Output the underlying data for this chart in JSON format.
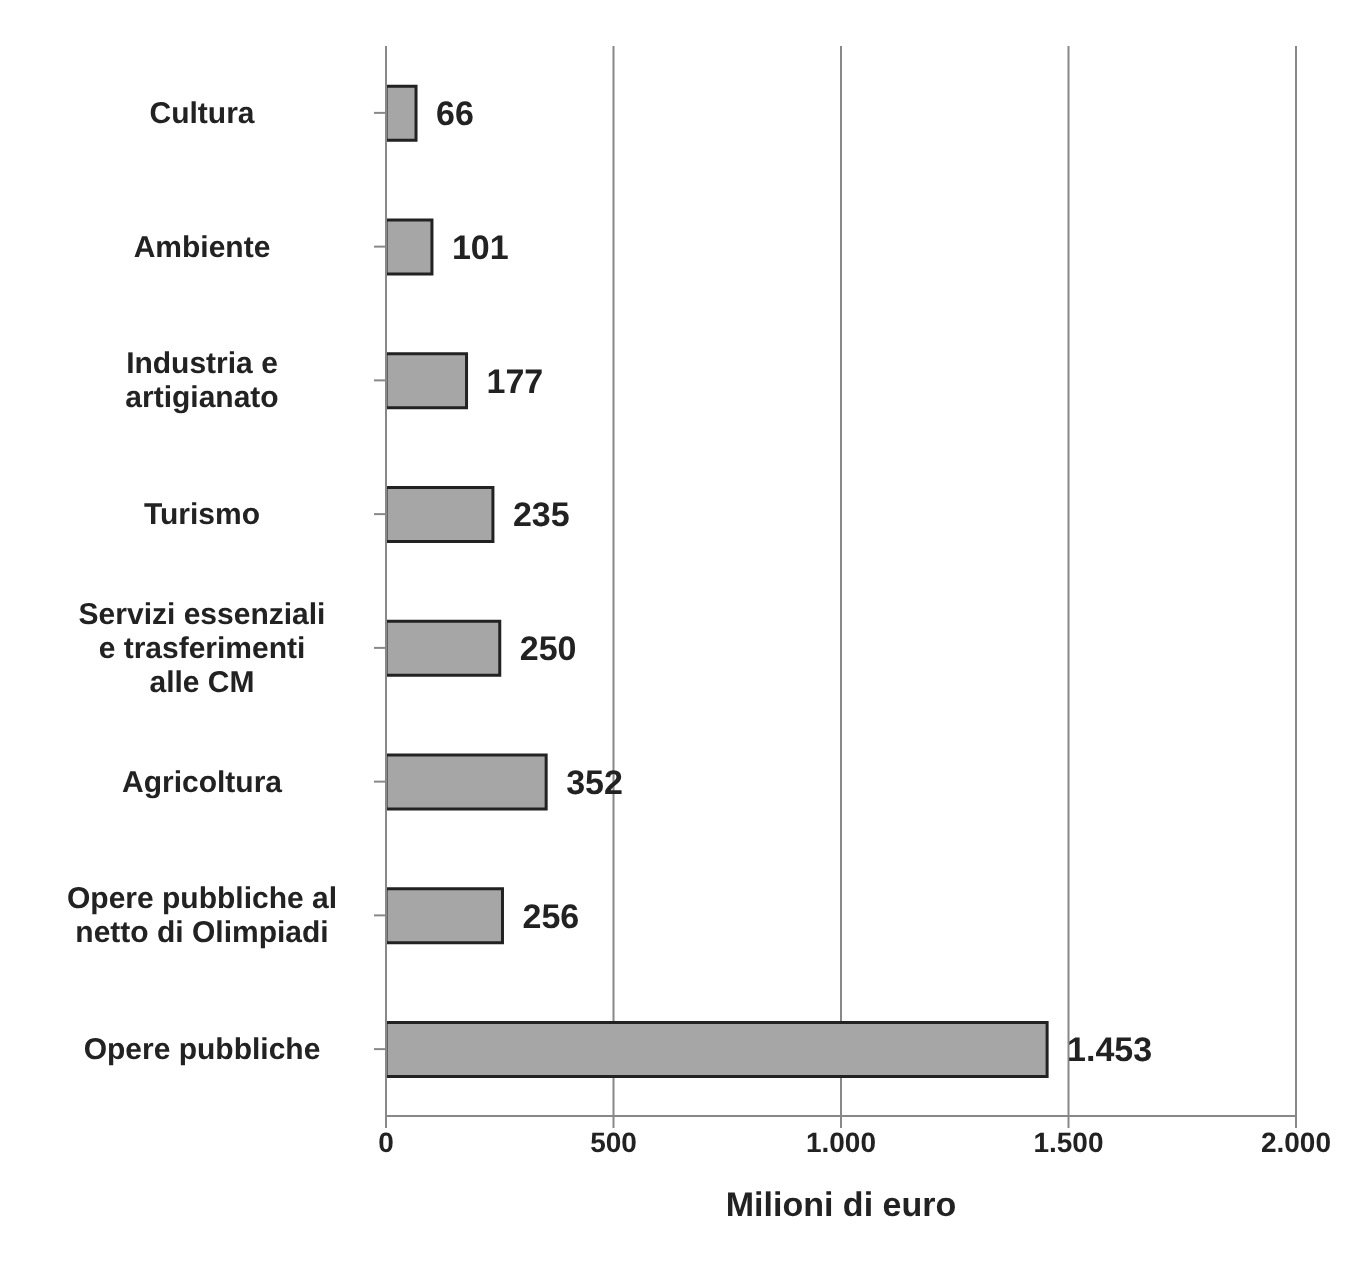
{
  "chart_data": {
    "type": "bar",
    "orientation": "horizontal",
    "xlabel": "Milioni di euro",
    "categories": [
      "Cultura",
      "Ambiente",
      "Industria e artigianato",
      "Turismo",
      "Servizi essenziali e trasferimenti alle CM",
      "Agricoltura",
      "Opere pubbliche al netto di Olimpiadi",
      "Opere pubbliche"
    ],
    "values": [
      66,
      101,
      177,
      235,
      250,
      352,
      256,
      1453
    ],
    "value_labels": [
      "66",
      "101",
      "177",
      "235",
      "250",
      "352",
      "256",
      "1.453"
    ],
    "color": "#a6a6a6",
    "xlim": [
      0,
      2000
    ],
    "xticks": [
      0,
      500,
      {
        "value": 1000,
        "label": "1.000"
      },
      {
        "value": 1500,
        "label": "1.500"
      },
      {
        "value": 2000,
        "label": "2.000"
      }
    ],
    "grid": "x"
  }
}
